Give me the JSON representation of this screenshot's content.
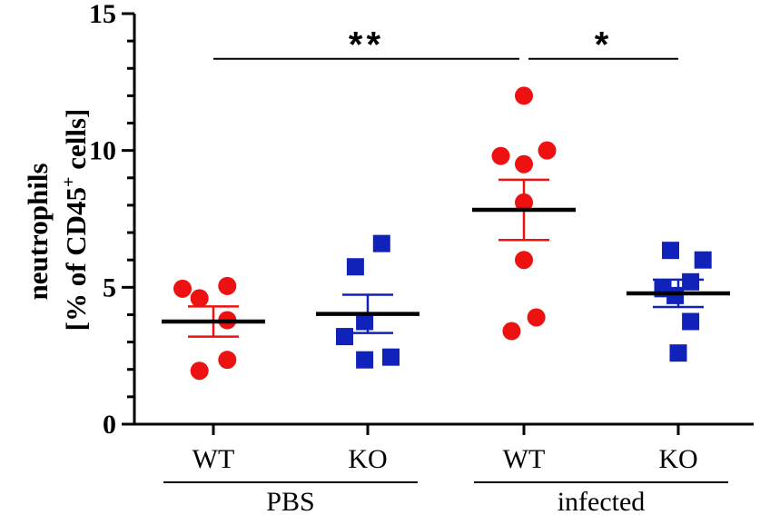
{
  "chart_data": {
    "type": "scatter",
    "ylabel": {
      "line1": "neutrophils",
      "line2_prefix": "[% of CD45",
      "line2_sup": "+",
      "line2_suffix": " cells]"
    },
    "ylim": [
      0,
      15
    ],
    "yticks": [
      {
        "value": 0,
        "label": "0"
      },
      {
        "value": 5,
        "label": "5"
      },
      {
        "value": 10,
        "label": "10"
      },
      {
        "value": 15,
        "label": "15"
      }
    ],
    "categories": [
      "WT",
      "KO",
      "WT",
      "KO"
    ],
    "groups": [
      {
        "label": "PBS",
        "from": 0,
        "to": 1
      },
      {
        "label": "infected",
        "from": 2,
        "to": 3
      }
    ],
    "colors": {
      "wt": "#ee1111",
      "ko": "#1122bb",
      "mean": "#000000"
    },
    "series": [
      {
        "name": "PBS WT",
        "category": 0,
        "marker": "circle",
        "color": "#ee1111",
        "mean": 3.75,
        "sem": 0.55,
        "points": [
          {
            "x": -0.2,
            "y": 4.95
          },
          {
            "x": -0.09,
            "y": 4.6
          },
          {
            "x": 0.09,
            "y": 5.05
          },
          {
            "x": 0.09,
            "y": 3.8
          },
          {
            "x": -0.09,
            "y": 1.95
          },
          {
            "x": 0.09,
            "y": 2.35
          }
        ]
      },
      {
        "name": "PBS KO",
        "category": 1,
        "marker": "square",
        "color": "#1122bb",
        "mean": 4.03,
        "sem": 0.7,
        "points": [
          {
            "x": -0.08,
            "y": 5.75
          },
          {
            "x": 0.09,
            "y": 6.6
          },
          {
            "x": -0.02,
            "y": 3.75
          },
          {
            "x": -0.15,
            "y": 3.2
          },
          {
            "x": -0.02,
            "y": 2.35
          },
          {
            "x": 0.15,
            "y": 2.45
          }
        ]
      },
      {
        "name": "infected WT",
        "category": 2,
        "marker": "circle",
        "color": "#ee1111",
        "mean": 7.83,
        "sem": 1.1,
        "points": [
          {
            "x": 0.0,
            "y": 12.0
          },
          {
            "x": -0.15,
            "y": 9.8
          },
          {
            "x": 0.15,
            "y": 10.0
          },
          {
            "x": 0.0,
            "y": 9.5
          },
          {
            "x": 0.0,
            "y": 8.1
          },
          {
            "x": 0.0,
            "y": 6.0
          },
          {
            "x": 0.08,
            "y": 3.9
          },
          {
            "x": -0.08,
            "y": 3.4
          }
        ]
      },
      {
        "name": "infected KO",
        "category": 3,
        "marker": "square",
        "color": "#1122bb",
        "mean": 4.78,
        "sem": 0.5,
        "points": [
          {
            "x": -0.05,
            "y": 6.35
          },
          {
            "x": 0.16,
            "y": 6.0
          },
          {
            "x": 0.08,
            "y": 5.2
          },
          {
            "x": -0.1,
            "y": 4.95
          },
          {
            "x": -0.02,
            "y": 4.7
          },
          {
            "x": 0.08,
            "y": 3.75
          },
          {
            "x": 0.0,
            "y": 2.6
          }
        ]
      }
    ],
    "significance": [
      {
        "from": 0,
        "to": 2,
        "y": 13.35,
        "label": "**"
      },
      {
        "from": 2,
        "to": 3,
        "y": 13.35,
        "label": "*"
      }
    ]
  }
}
